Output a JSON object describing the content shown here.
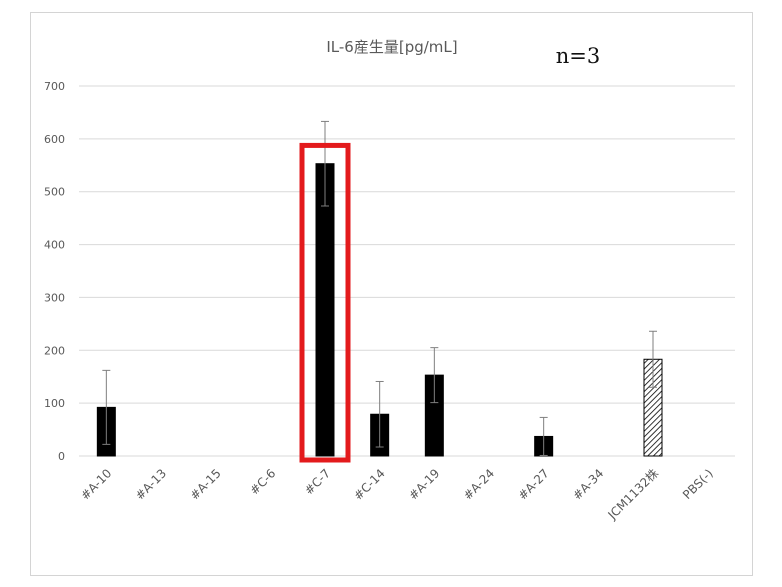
{
  "chart_data": {
    "type": "bar",
    "title": "IL-6産生量[pg/mL]",
    "annotation": "n=3",
    "categories": [
      "#A-10",
      "#A-13",
      "#A-15",
      "#C-6",
      "#C-7",
      "#C-14",
      "#A-19",
      "#A-24",
      "#A-27",
      "#A-34",
      "JCM1132株",
      "PBS(-)"
    ],
    "values": [
      92,
      0,
      0,
      0,
      553,
      79,
      153,
      0,
      37,
      0,
      183,
      0
    ],
    "errors": [
      70,
      0,
      0,
      0,
      80,
      62,
      52,
      0,
      36,
      0,
      53,
      0
    ],
    "ylim": [
      0,
      700
    ],
    "yticks": [
      0,
      100,
      200,
      300,
      400,
      500,
      600,
      700
    ],
    "grid": true,
    "highlight_category": "#C-7",
    "colors": {
      "bar": "#000000",
      "hatched_bar_category": "JCM1132株",
      "highlight_box": "#e31a1c",
      "grid": "#d9d9d9",
      "error_bar": "#7f7f7f"
    }
  }
}
